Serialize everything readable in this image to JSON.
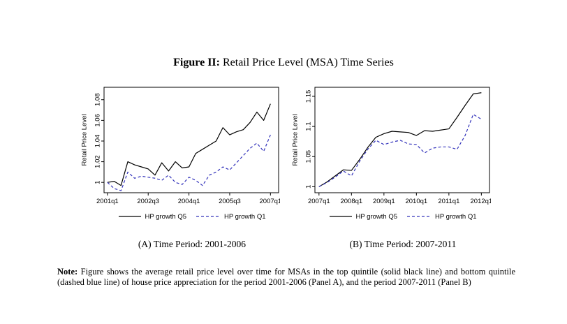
{
  "title": {
    "prefix": "Figure II:",
    "rest": " Retail Price Level (MSA) Time Series"
  },
  "colors": {
    "q5_line": "#000000",
    "q1_line": "#3333bb",
    "axis": "#000000",
    "background": "#ffffff"
  },
  "legend": {
    "q5_label": "HP growth Q5",
    "q1_label": "HP growth Q1"
  },
  "captions": {
    "a": "(A) Time Period: 2001-2006",
    "b": "(B) Time Period: 2007-2011"
  },
  "note": {
    "label": "Note:",
    "text": " Figure shows the average retail price level over time for MSAs in the top quintile (solid black line) and bottom quintile (dashed blue line) of house price appreciation for the period 2001-2006 (Panel A), and the period 2007-2011 (Panel B)"
  },
  "chart_data": [
    {
      "type": "line",
      "panel": "A",
      "title": "",
      "xlabel": "",
      "ylabel": "Retail Price Level",
      "x_unit": "quarter",
      "x_start": "2001q1",
      "x_end": "2007q1",
      "x_tick_positions": [
        0,
        6,
        12,
        18,
        24
      ],
      "x_tick_labels": [
        "2001q1",
        "2002q3",
        "2004q1",
        "2005q3",
        "2007q1"
      ],
      "y_ticks": [
        1,
        1.02,
        1.04,
        1.06,
        1.08
      ],
      "y_tick_labels": [
        "1",
        "1.02",
        "1.04",
        "1.06",
        "1.08"
      ],
      "xlim": [
        -0.5,
        25.2
      ],
      "ylim": [
        0.99,
        1.092
      ],
      "grid": false,
      "legend_position": "bottom",
      "series": [
        {
          "name": "HP growth Q5",
          "style": "solid",
          "color": "#000000",
          "values": [
            1.0,
            1.001,
            0.997,
            1.02,
            1.017,
            1.015,
            1.013,
            1.007,
            1.019,
            1.011,
            1.02,
            1.014,
            1.015,
            1.028,
            1.032,
            1.036,
            1.04,
            1.053,
            1.046,
            1.049,
            1.051,
            1.058,
            1.068,
            1.06,
            1.076
          ]
        },
        {
          "name": "HP growth Q1",
          "style": "dashed",
          "color": "#3333bb",
          "values": [
            1.0,
            0.994,
            0.992,
            1.01,
            1.004,
            1.006,
            1.005,
            1.004,
            1.002,
            1.007,
            1.0,
            0.998,
            1.005,
            1.002,
            0.997,
            1.007,
            1.01,
            1.015,
            1.012,
            1.019,
            1.026,
            1.033,
            1.038,
            1.03,
            1.046
          ]
        }
      ]
    },
    {
      "type": "line",
      "panel": "B",
      "title": "",
      "xlabel": "",
      "ylabel": "Retail Price Level",
      "x_unit": "quarter",
      "x_start": "2007q1",
      "x_end": "2012q1",
      "x_tick_positions": [
        0,
        4,
        8,
        12,
        16,
        20
      ],
      "x_tick_labels": [
        "2007q1",
        "2008q1",
        "2009q1",
        "2010q1",
        "2011q1",
        "2012q1"
      ],
      "y_ticks": [
        1,
        1.05,
        1.1,
        1.15
      ],
      "y_tick_labels": [
        "1",
        "1.05",
        "1.1",
        "1.15"
      ],
      "xlim": [
        -0.5,
        21.0
      ],
      "ylim": [
        0.99,
        1.165
      ],
      "grid": false,
      "legend_position": "bottom",
      "series": [
        {
          "name": "HP growth Q5",
          "style": "solid",
          "color": "#000000",
          "values": [
            1.0,
            1.008,
            1.018,
            1.028,
            1.027,
            1.045,
            1.065,
            1.082,
            1.088,
            1.092,
            1.091,
            1.09,
            1.085,
            1.093,
            1.092,
            1.094,
            1.096,
            1.115,
            1.135,
            1.154,
            1.156
          ]
        },
        {
          "name": "HP growth Q1",
          "style": "dashed",
          "color": "#3333bb",
          "values": [
            1.0,
            1.007,
            1.016,
            1.026,
            1.018,
            1.042,
            1.062,
            1.077,
            1.07,
            1.074,
            1.077,
            1.071,
            1.07,
            1.056,
            1.064,
            1.066,
            1.066,
            1.062,
            1.085,
            1.12,
            1.112
          ]
        }
      ]
    }
  ]
}
